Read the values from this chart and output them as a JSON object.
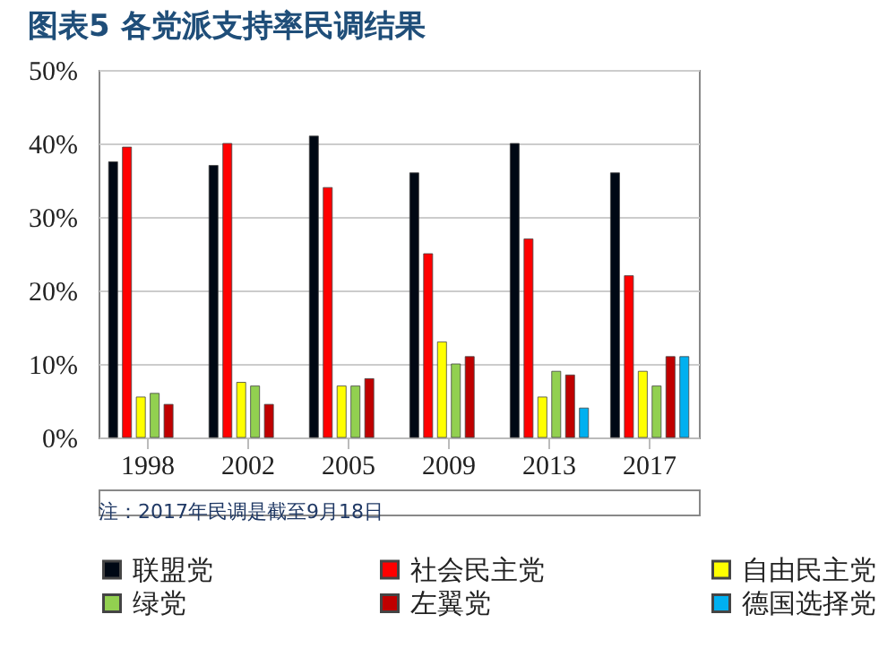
{
  "chart_data": {
    "type": "bar",
    "title": "图表5  各党派支持率民调结果",
    "categories": [
      "1998",
      "2002",
      "2005",
      "2009",
      "2013",
      "2017"
    ],
    "series": [
      {
        "name": "联盟党",
        "color": "#000814",
        "values": [
          37.5,
          37,
          41,
          36,
          40,
          36
        ]
      },
      {
        "name": "社会民主党",
        "color": "#ff0000",
        "values": [
          39.5,
          40,
          34,
          25,
          27,
          22
        ]
      },
      {
        "name": "自由民主党",
        "color": "#ffff00",
        "values": [
          5.5,
          7.5,
          7,
          13,
          5.5,
          9
        ]
      },
      {
        "name": "绿党",
        "color": "#92d050",
        "values": [
          6,
          7,
          7,
          10,
          9,
          7
        ]
      },
      {
        "name": "左翼党",
        "color": "#c00000",
        "values": [
          4.5,
          4.5,
          8,
          11,
          8.5,
          11
        ]
      },
      {
        "name": "德国选择党",
        "color": "#00b0f0",
        "values": [
          null,
          null,
          null,
          null,
          4,
          11
        ]
      }
    ],
    "ylim": [
      0,
      50
    ],
    "yticks": [
      {
        "value": 0,
        "label": "0%"
      },
      {
        "value": 10,
        "label": "10%"
      },
      {
        "value": 20,
        "label": "20%"
      },
      {
        "value": 30,
        "label": "30%"
      },
      {
        "value": 40,
        "label": "40%"
      },
      {
        "value": 50,
        "label": "50%"
      }
    ],
    "grid": "y",
    "legend": "bottom",
    "annotations": [
      "注：2017年民调是截至9月18日"
    ]
  }
}
